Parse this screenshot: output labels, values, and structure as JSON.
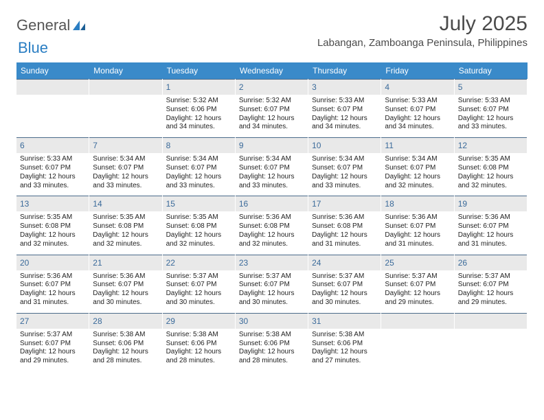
{
  "logo": {
    "text1": "General",
    "text2": "Blue"
  },
  "title": "July 2025",
  "location": "Labangan, Zamboanga Peninsula, Philippines",
  "colors": {
    "header_bg": "#3a8ac9",
    "day_bar_bg": "#e9e9e9",
    "day_bar_border": "#4a6a8a",
    "day_number_color": "#3a6a9a"
  },
  "weekdays": [
    "Sunday",
    "Monday",
    "Tuesday",
    "Wednesday",
    "Thursday",
    "Friday",
    "Saturday"
  ],
  "weeks": [
    [
      {
        "empty": true
      },
      {
        "empty": true
      },
      {
        "n": "1",
        "sunrise": "Sunrise: 5:32 AM",
        "sunset": "Sunset: 6:06 PM",
        "daylight": "Daylight: 12 hours and 34 minutes."
      },
      {
        "n": "2",
        "sunrise": "Sunrise: 5:32 AM",
        "sunset": "Sunset: 6:07 PM",
        "daylight": "Daylight: 12 hours and 34 minutes."
      },
      {
        "n": "3",
        "sunrise": "Sunrise: 5:33 AM",
        "sunset": "Sunset: 6:07 PM",
        "daylight": "Daylight: 12 hours and 34 minutes."
      },
      {
        "n": "4",
        "sunrise": "Sunrise: 5:33 AM",
        "sunset": "Sunset: 6:07 PM",
        "daylight": "Daylight: 12 hours and 34 minutes."
      },
      {
        "n": "5",
        "sunrise": "Sunrise: 5:33 AM",
        "sunset": "Sunset: 6:07 PM",
        "daylight": "Daylight: 12 hours and 33 minutes."
      }
    ],
    [
      {
        "n": "6",
        "sunrise": "Sunrise: 5:33 AM",
        "sunset": "Sunset: 6:07 PM",
        "daylight": "Daylight: 12 hours and 33 minutes."
      },
      {
        "n": "7",
        "sunrise": "Sunrise: 5:34 AM",
        "sunset": "Sunset: 6:07 PM",
        "daylight": "Daylight: 12 hours and 33 minutes."
      },
      {
        "n": "8",
        "sunrise": "Sunrise: 5:34 AM",
        "sunset": "Sunset: 6:07 PM",
        "daylight": "Daylight: 12 hours and 33 minutes."
      },
      {
        "n": "9",
        "sunrise": "Sunrise: 5:34 AM",
        "sunset": "Sunset: 6:07 PM",
        "daylight": "Daylight: 12 hours and 33 minutes."
      },
      {
        "n": "10",
        "sunrise": "Sunrise: 5:34 AM",
        "sunset": "Sunset: 6:07 PM",
        "daylight": "Daylight: 12 hours and 33 minutes."
      },
      {
        "n": "11",
        "sunrise": "Sunrise: 5:34 AM",
        "sunset": "Sunset: 6:07 PM",
        "daylight": "Daylight: 12 hours and 32 minutes."
      },
      {
        "n": "12",
        "sunrise": "Sunrise: 5:35 AM",
        "sunset": "Sunset: 6:08 PM",
        "daylight": "Daylight: 12 hours and 32 minutes."
      }
    ],
    [
      {
        "n": "13",
        "sunrise": "Sunrise: 5:35 AM",
        "sunset": "Sunset: 6:08 PM",
        "daylight": "Daylight: 12 hours and 32 minutes."
      },
      {
        "n": "14",
        "sunrise": "Sunrise: 5:35 AM",
        "sunset": "Sunset: 6:08 PM",
        "daylight": "Daylight: 12 hours and 32 minutes."
      },
      {
        "n": "15",
        "sunrise": "Sunrise: 5:35 AM",
        "sunset": "Sunset: 6:08 PM",
        "daylight": "Daylight: 12 hours and 32 minutes."
      },
      {
        "n": "16",
        "sunrise": "Sunrise: 5:36 AM",
        "sunset": "Sunset: 6:08 PM",
        "daylight": "Daylight: 12 hours and 32 minutes."
      },
      {
        "n": "17",
        "sunrise": "Sunrise: 5:36 AM",
        "sunset": "Sunset: 6:08 PM",
        "daylight": "Daylight: 12 hours and 31 minutes."
      },
      {
        "n": "18",
        "sunrise": "Sunrise: 5:36 AM",
        "sunset": "Sunset: 6:07 PM",
        "daylight": "Daylight: 12 hours and 31 minutes."
      },
      {
        "n": "19",
        "sunrise": "Sunrise: 5:36 AM",
        "sunset": "Sunset: 6:07 PM",
        "daylight": "Daylight: 12 hours and 31 minutes."
      }
    ],
    [
      {
        "n": "20",
        "sunrise": "Sunrise: 5:36 AM",
        "sunset": "Sunset: 6:07 PM",
        "daylight": "Daylight: 12 hours and 31 minutes."
      },
      {
        "n": "21",
        "sunrise": "Sunrise: 5:36 AM",
        "sunset": "Sunset: 6:07 PM",
        "daylight": "Daylight: 12 hours and 30 minutes."
      },
      {
        "n": "22",
        "sunrise": "Sunrise: 5:37 AM",
        "sunset": "Sunset: 6:07 PM",
        "daylight": "Daylight: 12 hours and 30 minutes."
      },
      {
        "n": "23",
        "sunrise": "Sunrise: 5:37 AM",
        "sunset": "Sunset: 6:07 PM",
        "daylight": "Daylight: 12 hours and 30 minutes."
      },
      {
        "n": "24",
        "sunrise": "Sunrise: 5:37 AM",
        "sunset": "Sunset: 6:07 PM",
        "daylight": "Daylight: 12 hours and 30 minutes."
      },
      {
        "n": "25",
        "sunrise": "Sunrise: 5:37 AM",
        "sunset": "Sunset: 6:07 PM",
        "daylight": "Daylight: 12 hours and 29 minutes."
      },
      {
        "n": "26",
        "sunrise": "Sunrise: 5:37 AM",
        "sunset": "Sunset: 6:07 PM",
        "daylight": "Daylight: 12 hours and 29 minutes."
      }
    ],
    [
      {
        "n": "27",
        "sunrise": "Sunrise: 5:37 AM",
        "sunset": "Sunset: 6:07 PM",
        "daylight": "Daylight: 12 hours and 29 minutes."
      },
      {
        "n": "28",
        "sunrise": "Sunrise: 5:38 AM",
        "sunset": "Sunset: 6:06 PM",
        "daylight": "Daylight: 12 hours and 28 minutes."
      },
      {
        "n": "29",
        "sunrise": "Sunrise: 5:38 AM",
        "sunset": "Sunset: 6:06 PM",
        "daylight": "Daylight: 12 hours and 28 minutes."
      },
      {
        "n": "30",
        "sunrise": "Sunrise: 5:38 AM",
        "sunset": "Sunset: 6:06 PM",
        "daylight": "Daylight: 12 hours and 28 minutes."
      },
      {
        "n": "31",
        "sunrise": "Sunrise: 5:38 AM",
        "sunset": "Sunset: 6:06 PM",
        "daylight": "Daylight: 12 hours and 27 minutes."
      },
      {
        "empty": true
      },
      {
        "empty": true
      }
    ]
  ]
}
